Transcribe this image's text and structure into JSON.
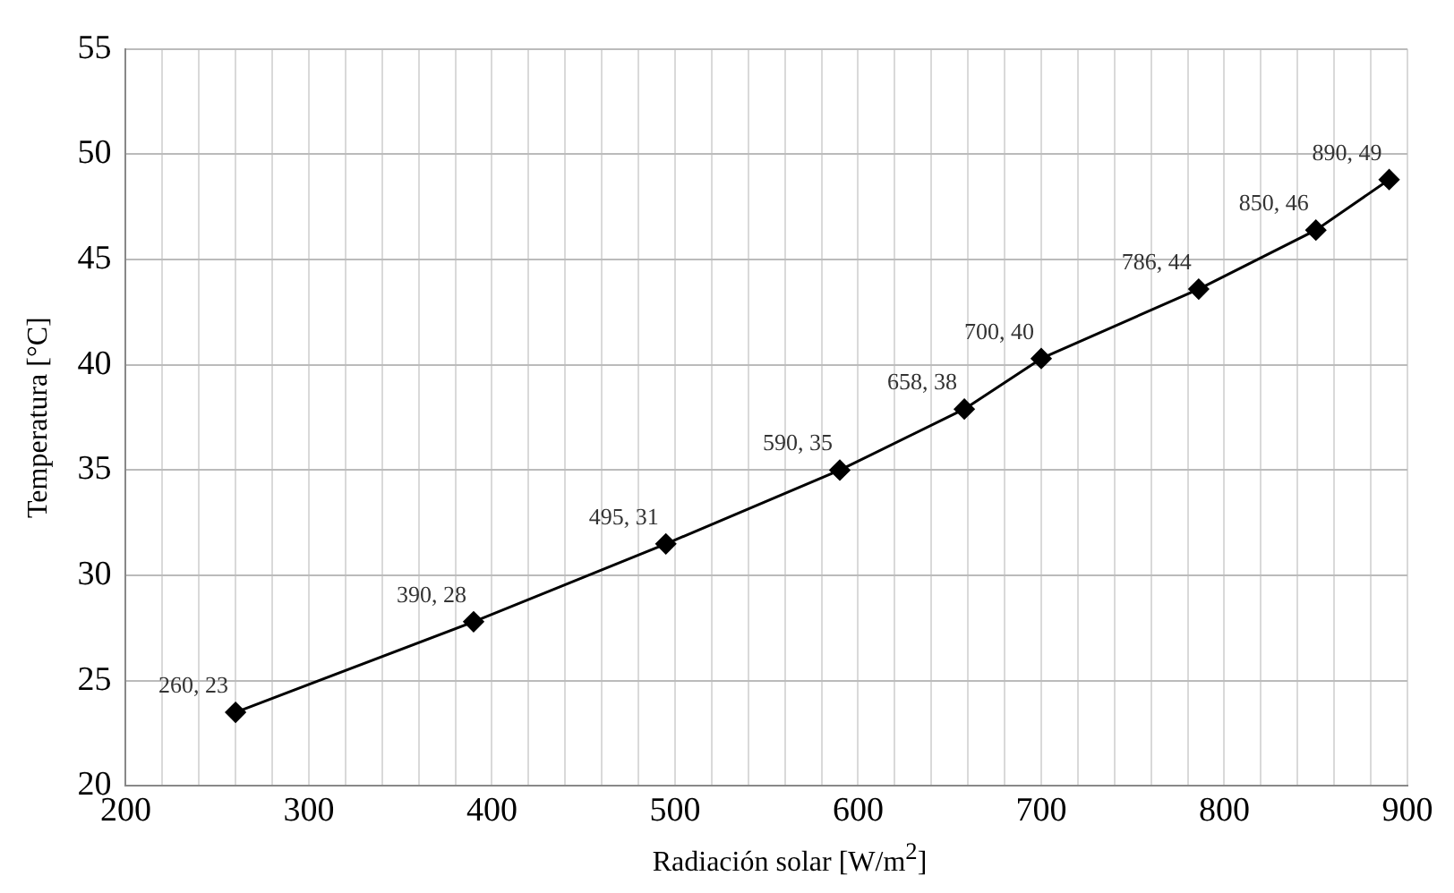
{
  "chart_data": {
    "type": "line",
    "xlabel": "Radiación solar [W/m$^{2}$]",
    "ylabel": "Temperatura [°C]",
    "x": [
      260,
      390,
      495,
      590,
      658,
      700,
      786,
      850,
      890
    ],
    "series": [
      {
        "color": "#000000",
        "values": [
          23.5,
          27.8,
          31.5,
          35,
          37.9,
          40.3,
          43.6,
          46.4,
          48.8
        ],
        "value_labels": [
          "260, 23",
          "390, 28",
          "495, 31",
          "590, 35",
          "658, 38",
          "700, 40",
          "786, 44",
          "850, 46",
          "890, 49"
        ]
      }
    ],
    "xlim": [
      200,
      900
    ],
    "ylim": [
      20,
      55
    ],
    "xticks": [
      200,
      {
        "value": 220,
        "label": null
      },
      {
        "value": 240,
        "label": null
      },
      {
        "value": 260,
        "label": null
      },
      {
        "value": 280,
        "label": null
      },
      300,
      {
        "value": 320,
        "label": null
      },
      {
        "value": 340,
        "label": null
      },
      {
        "value": 360,
        "label": null
      },
      {
        "value": 380,
        "label": null
      },
      400,
      {
        "value": 420,
        "label": null
      },
      {
        "value": 440,
        "label": null
      },
      {
        "value": 460,
        "label": null
      },
      {
        "value": 480,
        "label": null
      },
      500,
      {
        "value": 520,
        "label": null
      },
      {
        "value": 540,
        "label": null
      },
      {
        "value": 560,
        "label": null
      },
      {
        "value": 580,
        "label": null
      },
      600,
      {
        "value": 620,
        "label": null
      },
      {
        "value": 640,
        "label": null
      },
      {
        "value": 660,
        "label": null
      },
      {
        "value": 680,
        "label": null
      },
      700,
      {
        "value": 720,
        "label": null
      },
      {
        "value": 740,
        "label": null
      },
      {
        "value": 760,
        "label": null
      },
      {
        "value": 780,
        "label": null
      },
      800,
      {
        "value": 820,
        "label": null
      },
      {
        "value": 840,
        "label": null
      },
      {
        "value": 860,
        "label": null
      },
      {
        "value": 880,
        "label": null
      },
      900
    ],
    "yticks": [
      20,
      25,
      30,
      35,
      40,
      45,
      50,
      55
    ],
    "grid": true,
    "legend": false,
    "marker": "diamond",
    "line_style": "solid"
  }
}
